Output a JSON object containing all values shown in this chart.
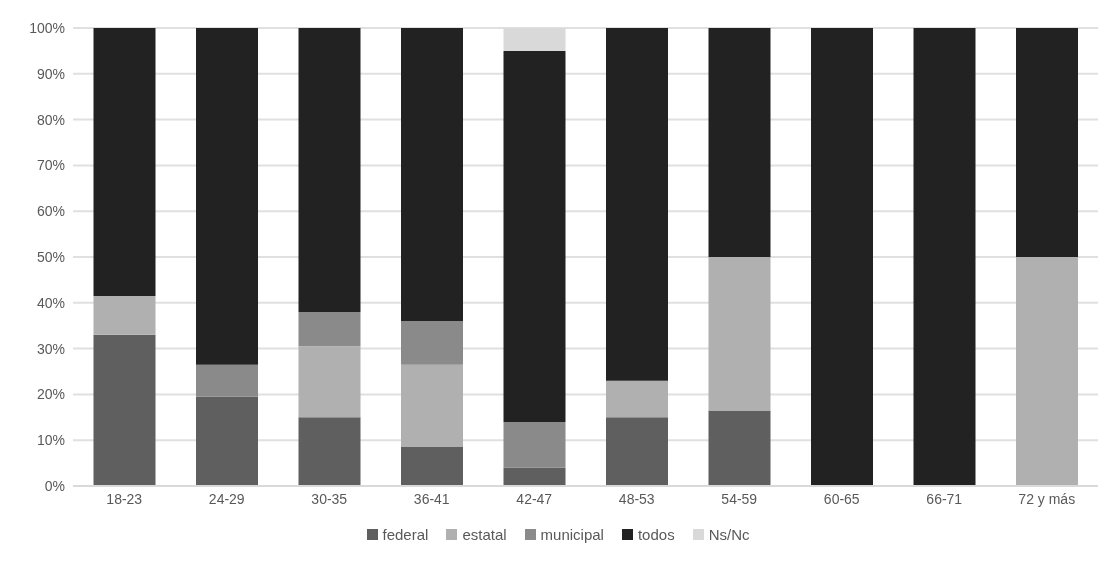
{
  "chart_data": {
    "type": "bar",
    "stacked": true,
    "categories": [
      "18-23",
      "24-29",
      "30-35",
      "36-41",
      "42-47",
      "48-53",
      "54-59",
      "60-65",
      "66-71",
      "72 y más"
    ],
    "series": [
      {
        "name": "federal",
        "color": "#5f5f5f",
        "values": [
          33,
          19.5,
          15,
          8.5,
          4,
          15,
          16.5,
          0,
          0,
          0
        ]
      },
      {
        "name": "estatal",
        "color": "#b0b0b0",
        "values": [
          8.5,
          0,
          15.5,
          18,
          0,
          8,
          33.5,
          0,
          0,
          50
        ]
      },
      {
        "name": "municipal",
        "color": "#8a8a8a",
        "values": [
          0,
          7,
          7.5,
          9.5,
          10,
          0,
          0,
          0,
          0,
          0
        ]
      },
      {
        "name": "todos",
        "color": "#222222",
        "values": [
          58.5,
          73.5,
          62,
          64,
          81,
          77,
          50,
          100,
          100,
          50
        ]
      },
      {
        "name": "Ns/Nc",
        "color": "#d9d9d9",
        "values": [
          0,
          0,
          0,
          0,
          5,
          0,
          0,
          0,
          0,
          0
        ]
      }
    ],
    "ylim": [
      0,
      100
    ],
    "yticks": [
      {
        "value": 0,
        "label": "0%"
      },
      {
        "value": 10,
        "label": "10%"
      },
      {
        "value": 20,
        "label": "20%"
      },
      {
        "value": 30,
        "label": "30%"
      },
      {
        "value": 40,
        "label": "40%"
      },
      {
        "value": 50,
        "label": "50%"
      },
      {
        "value": 60,
        "label": "60%"
      },
      {
        "value": 70,
        "label": "70%"
      },
      {
        "value": 80,
        "label": "80%"
      },
      {
        "value": 90,
        "label": "90%"
      },
      {
        "value": 100,
        "label": "100%"
      }
    ],
    "grid": "y",
    "legend": "bottom"
  }
}
